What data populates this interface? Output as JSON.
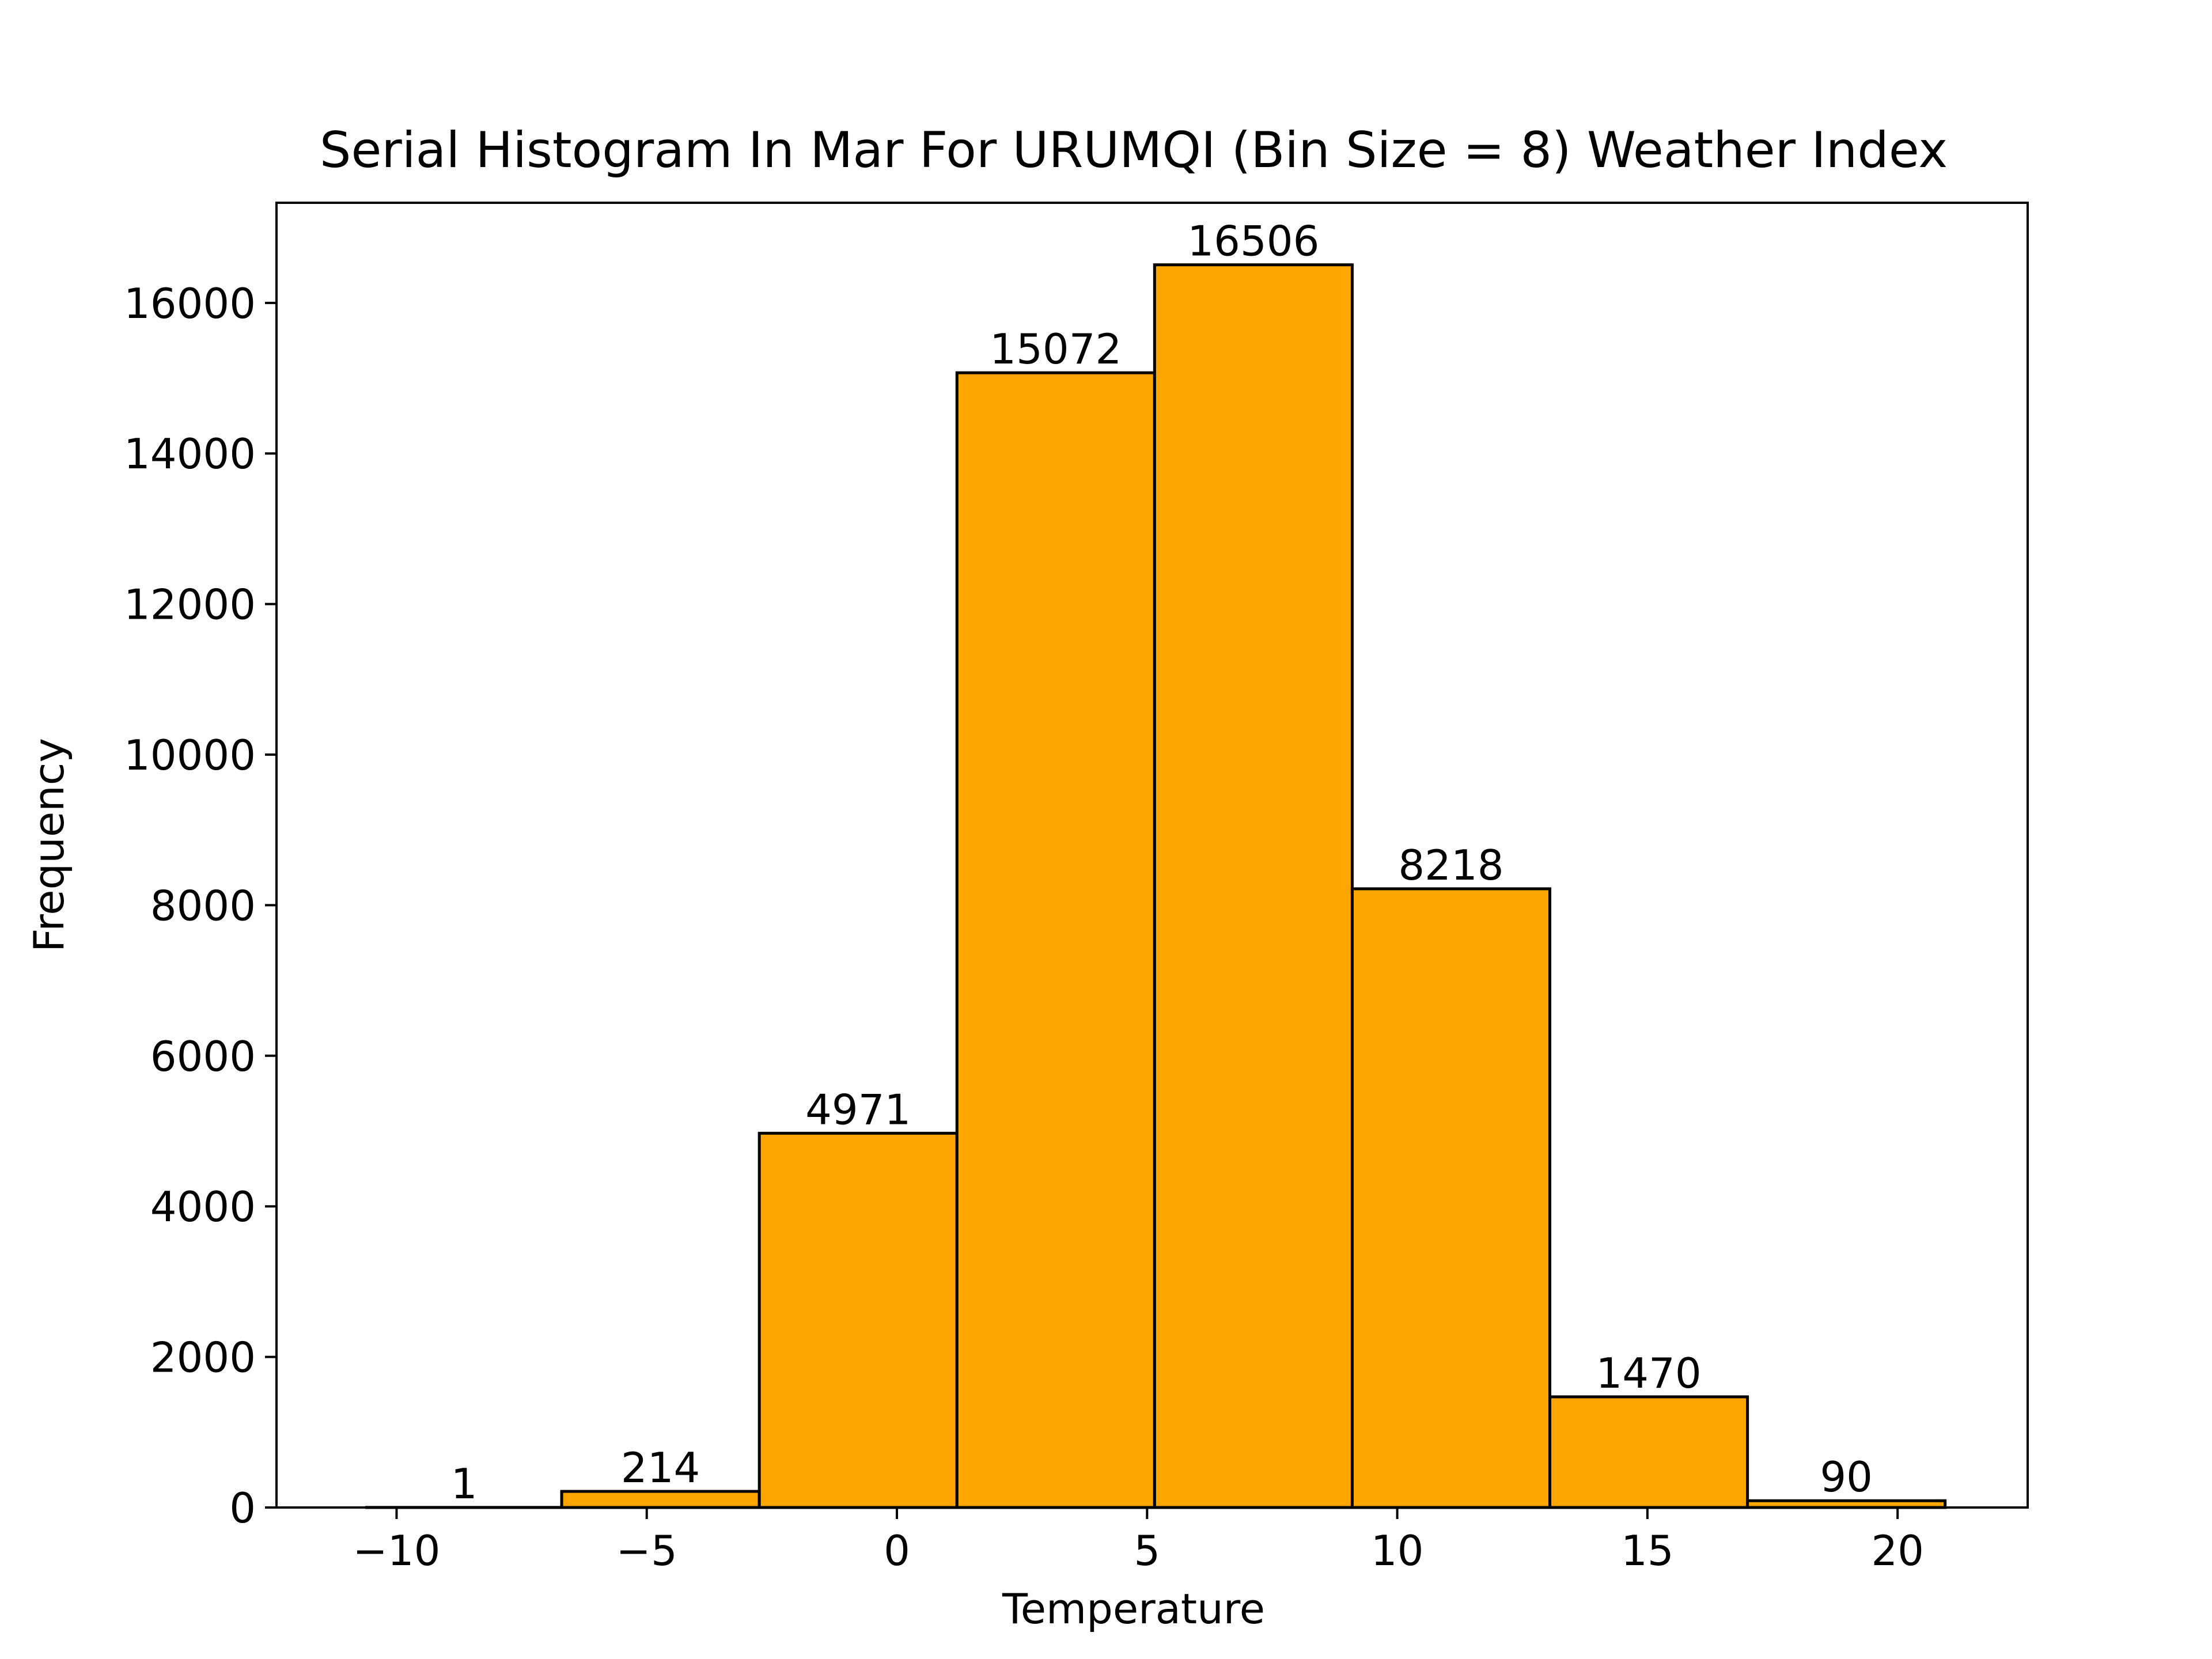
{
  "chart_data": {
    "type": "bar",
    "title": "Serial Histogram In Mar For URUMQI (Bin Size = 8) Weather Index",
    "xlabel": "Temperature",
    "ylabel": "Frequency",
    "bin_edges": [
      -10.6,
      -6.7,
      -2.75,
      1.2,
      5.15,
      9.1,
      13.05,
      17.0,
      20.95
    ],
    "values": [
      1,
      214,
      4971,
      15072,
      16506,
      8218,
      1470,
      90
    ],
    "xlim": [
      -12.4,
      22.6
    ],
    "ylim": [
      0,
      17330
    ],
    "xticks": [
      -10,
      -5,
      0,
      5,
      10,
      15,
      20
    ],
    "xtick_labels": [
      "−10",
      "−5",
      "0",
      "5",
      "10",
      "15",
      "20"
    ],
    "yticks": [
      0,
      2000,
      4000,
      6000,
      8000,
      10000,
      12000,
      14000,
      16000
    ],
    "ytick_labels": [
      "0",
      "2000",
      "4000",
      "6000",
      "8000",
      "10000",
      "12000",
      "14000",
      "16000"
    ],
    "bar_color": "#ffa500",
    "edge_color": "#000000",
    "grid": false,
    "legend": "none"
  }
}
